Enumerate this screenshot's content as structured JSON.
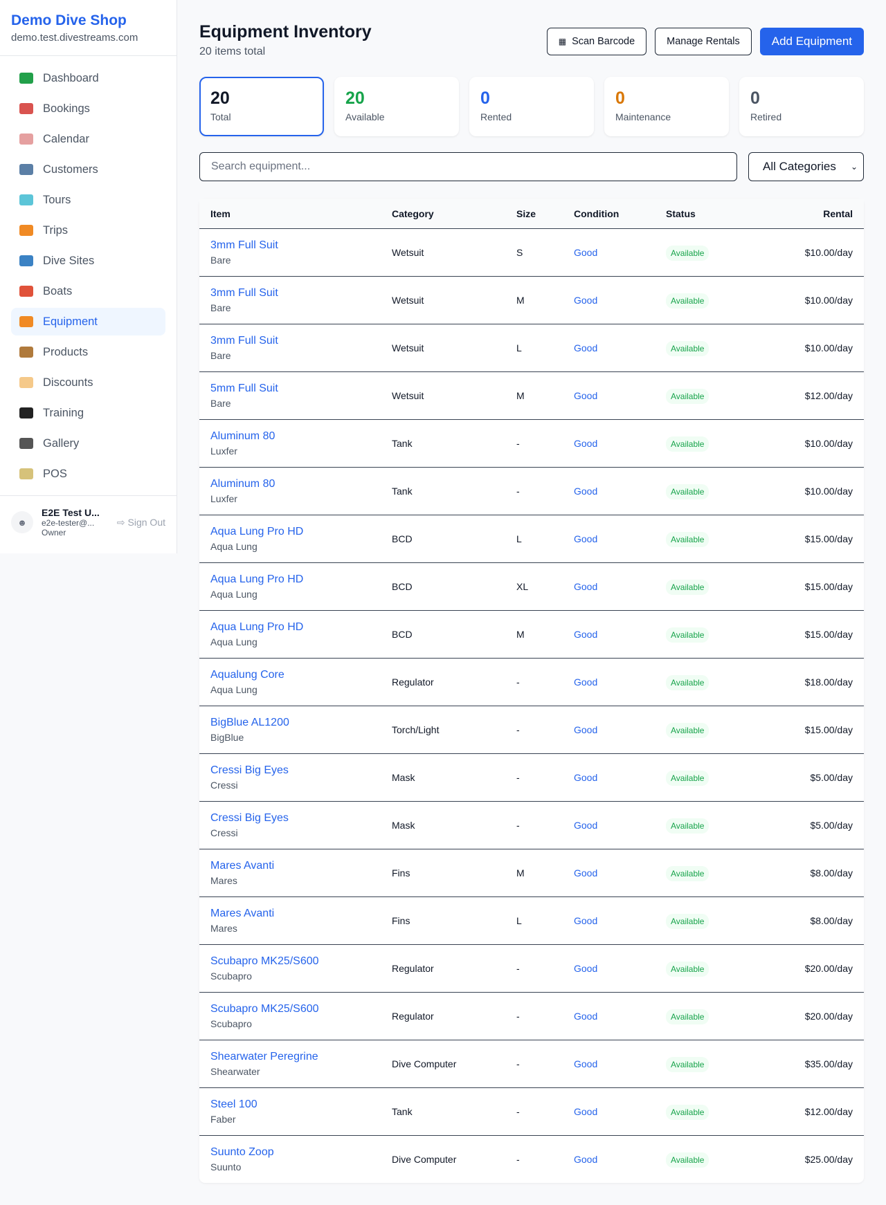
{
  "sidebar": {
    "shop_name": "Demo Dive Shop",
    "domain": "demo.test.divestreams.com",
    "items": [
      {
        "label": "Dashboard",
        "icon": "bar-chart-icon",
        "color": "#22a04a"
      },
      {
        "label": "Bookings",
        "icon": "calendar-17-icon",
        "color": "#d9534f"
      },
      {
        "label": "Calendar",
        "icon": "spiral-calendar-icon",
        "color": "#e5a0a0"
      },
      {
        "label": "Customers",
        "icon": "users-icon",
        "color": "#5b7fa6"
      },
      {
        "label": "Tours",
        "icon": "island-icon",
        "color": "#5cc5d8"
      },
      {
        "label": "Trips",
        "icon": "speedboat-icon",
        "color": "#f08a24"
      },
      {
        "label": "Dive Sites",
        "icon": "wave-icon",
        "color": "#3b82c4"
      },
      {
        "label": "Boats",
        "icon": "sailboat-icon",
        "color": "#e0523a"
      },
      {
        "label": "Equipment",
        "icon": "diving-mask-icon",
        "color": "#f08a24"
      },
      {
        "label": "Products",
        "icon": "package-icon",
        "color": "#b07a3c"
      },
      {
        "label": "Discounts",
        "icon": "tag-icon",
        "color": "#f5c98a"
      },
      {
        "label": "Training",
        "icon": "graduation-cap-icon",
        "color": "#222222"
      },
      {
        "label": "Gallery",
        "icon": "camera-icon",
        "color": "#555555"
      },
      {
        "label": "POS",
        "icon": "credit-card-icon",
        "color": "#d6c27a"
      }
    ],
    "active_index": 8,
    "user": {
      "name": "E2E Test U...",
      "email": "e2e-tester@...",
      "role": "Owner",
      "sign_out": "Sign Out"
    }
  },
  "header": {
    "title": "Equipment Inventory",
    "subtitle": "20 items total",
    "scan_barcode": "Scan Barcode",
    "manage_rentals": "Manage Rentals",
    "add_equipment": "Add Equipment"
  },
  "stats": [
    {
      "value": "20",
      "label": "Total",
      "color": "#111827"
    },
    {
      "value": "20",
      "label": "Available",
      "color": "#16a34a"
    },
    {
      "value": "0",
      "label": "Rented",
      "color": "#2563eb"
    },
    {
      "value": "0",
      "label": "Maintenance",
      "color": "#d97706"
    },
    {
      "value": "0",
      "label": "Retired",
      "color": "#4b5563"
    }
  ],
  "filters": {
    "search_placeholder": "Search equipment...",
    "category_selected": "All Categories"
  },
  "table": {
    "headers": [
      "Item",
      "Category",
      "Size",
      "Condition",
      "Status",
      "Rental"
    ],
    "rows": [
      {
        "name": "3mm Full Suit",
        "brand": "Bare",
        "category": "Wetsuit",
        "size": "S",
        "condition": "Good",
        "status": "Available",
        "rental": "$10.00/day"
      },
      {
        "name": "3mm Full Suit",
        "brand": "Bare",
        "category": "Wetsuit",
        "size": "M",
        "condition": "Good",
        "status": "Available",
        "rental": "$10.00/day"
      },
      {
        "name": "3mm Full Suit",
        "brand": "Bare",
        "category": "Wetsuit",
        "size": "L",
        "condition": "Good",
        "status": "Available",
        "rental": "$10.00/day"
      },
      {
        "name": "5mm Full Suit",
        "brand": "Bare",
        "category": "Wetsuit",
        "size": "M",
        "condition": "Good",
        "status": "Available",
        "rental": "$12.00/day"
      },
      {
        "name": "Aluminum 80",
        "brand": "Luxfer",
        "category": "Tank",
        "size": "-",
        "condition": "Good",
        "status": "Available",
        "rental": "$10.00/day"
      },
      {
        "name": "Aluminum 80",
        "brand": "Luxfer",
        "category": "Tank",
        "size": "-",
        "condition": "Good",
        "status": "Available",
        "rental": "$10.00/day"
      },
      {
        "name": "Aqua Lung Pro HD",
        "brand": "Aqua Lung",
        "category": "BCD",
        "size": "L",
        "condition": "Good",
        "status": "Available",
        "rental": "$15.00/day"
      },
      {
        "name": "Aqua Lung Pro HD",
        "brand": "Aqua Lung",
        "category": "BCD",
        "size": "XL",
        "condition": "Good",
        "status": "Available",
        "rental": "$15.00/day"
      },
      {
        "name": "Aqua Lung Pro HD",
        "brand": "Aqua Lung",
        "category": "BCD",
        "size": "M",
        "condition": "Good",
        "status": "Available",
        "rental": "$15.00/day"
      },
      {
        "name": "Aqualung Core",
        "brand": "Aqua Lung",
        "category": "Regulator",
        "size": "-",
        "condition": "Good",
        "status": "Available",
        "rental": "$18.00/day"
      },
      {
        "name": "BigBlue AL1200",
        "brand": "BigBlue",
        "category": "Torch/Light",
        "size": "-",
        "condition": "Good",
        "status": "Available",
        "rental": "$15.00/day"
      },
      {
        "name": "Cressi Big Eyes",
        "brand": "Cressi",
        "category": "Mask",
        "size": "-",
        "condition": "Good",
        "status": "Available",
        "rental": "$5.00/day"
      },
      {
        "name": "Cressi Big Eyes",
        "brand": "Cressi",
        "category": "Mask",
        "size": "-",
        "condition": "Good",
        "status": "Available",
        "rental": "$5.00/day"
      },
      {
        "name": "Mares Avanti",
        "brand": "Mares",
        "category": "Fins",
        "size": "M",
        "condition": "Good",
        "status": "Available",
        "rental": "$8.00/day"
      },
      {
        "name": "Mares Avanti",
        "brand": "Mares",
        "category": "Fins",
        "size": "L",
        "condition": "Good",
        "status": "Available",
        "rental": "$8.00/day"
      },
      {
        "name": "Scubapro MK25/S600",
        "brand": "Scubapro",
        "category": "Regulator",
        "size": "-",
        "condition": "Good",
        "status": "Available",
        "rental": "$20.00/day"
      },
      {
        "name": "Scubapro MK25/S600",
        "brand": "Scubapro",
        "category": "Regulator",
        "size": "-",
        "condition": "Good",
        "status": "Available",
        "rental": "$20.00/day"
      },
      {
        "name": "Shearwater Peregrine",
        "brand": "Shearwater",
        "category": "Dive Computer",
        "size": "-",
        "condition": "Good",
        "status": "Available",
        "rental": "$35.00/day"
      },
      {
        "name": "Steel 100",
        "brand": "Faber",
        "category": "Tank",
        "size": "-",
        "condition": "Good",
        "status": "Available",
        "rental": "$12.00/day"
      },
      {
        "name": "Suunto Zoop",
        "brand": "Suunto",
        "category": "Dive Computer",
        "size": "-",
        "condition": "Good",
        "status": "Available",
        "rental": "$25.00/day"
      }
    ]
  }
}
